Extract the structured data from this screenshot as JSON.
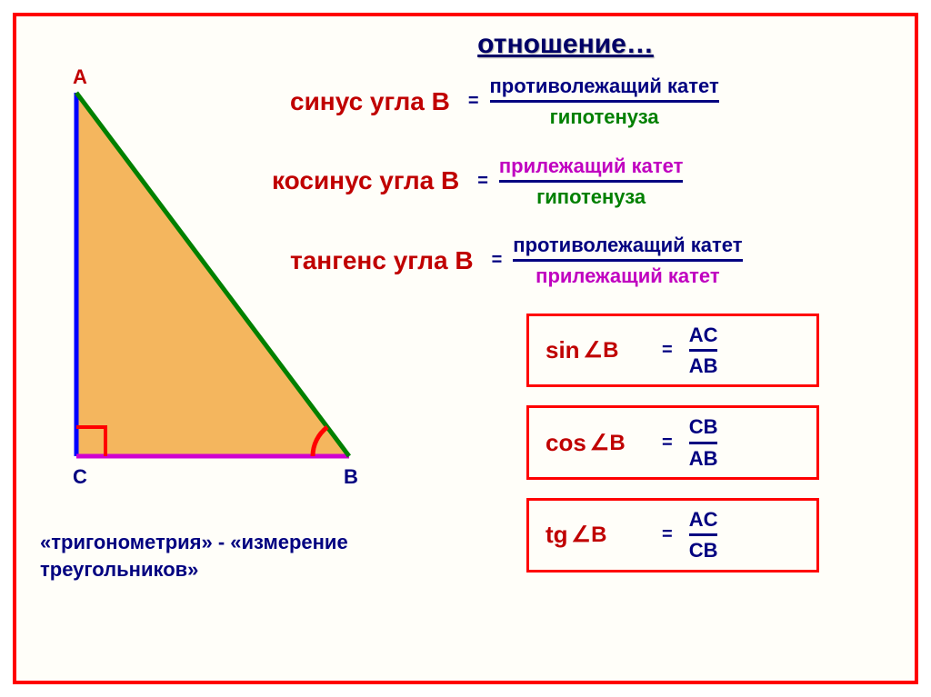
{
  "title": "отношение…",
  "vertices": {
    "A": "A",
    "B": "B",
    "C": "C"
  },
  "triangle": {
    "A": [
      40,
      20
    ],
    "C": [
      40,
      420
    ],
    "B": [
      340,
      420
    ],
    "fill": "#f4b65e",
    "side_AC_color": "#0000ff",
    "side_CB_color": "#d000d0",
    "side_AB_color": "#008000",
    "right_angle_color": "#ff0000",
    "arc_color": "#ff0000",
    "stroke_width": 5
  },
  "defs": [
    {
      "label": "синус угла В",
      "label_color": "#c00000",
      "num": "противолежащий катет",
      "num_color": "#000080",
      "den": "гипотенуза",
      "den_color": "#008000"
    },
    {
      "label": "косинус угла В",
      "label_color": "#c00000",
      "num": "прилежащий катет",
      "num_color": "#c000c0",
      "den": "гипотенуза",
      "den_color": "#008000"
    },
    {
      "label": "тангенс угла В",
      "label_color": "#c00000",
      "num": "противолежащий катет",
      "num_color": "#000080",
      "den": "прилежащий катет",
      "den_color": "#c000c0"
    }
  ],
  "formulas": [
    {
      "fn": "sin",
      "angle": "B",
      "num": "AC",
      "den": "AB"
    },
    {
      "fn": "cos",
      "angle": "B",
      "num": "CB",
      "den": "AB"
    },
    {
      "fn": "tg",
      "angle": "B",
      "num": "AC",
      "den": "CB"
    }
  ],
  "footnote_l1": "«тригонометрия» - «измерение",
  "footnote_l2": "треугольников»",
  "colors": {
    "frame_border": "#ff0000",
    "formula_box_border": "#ff0000",
    "formula_fn_color": "#c00000",
    "formula_val_color": "#000080",
    "vertex_A": "#c00000",
    "vertex_B": "#000080",
    "vertex_C": "#000080"
  }
}
